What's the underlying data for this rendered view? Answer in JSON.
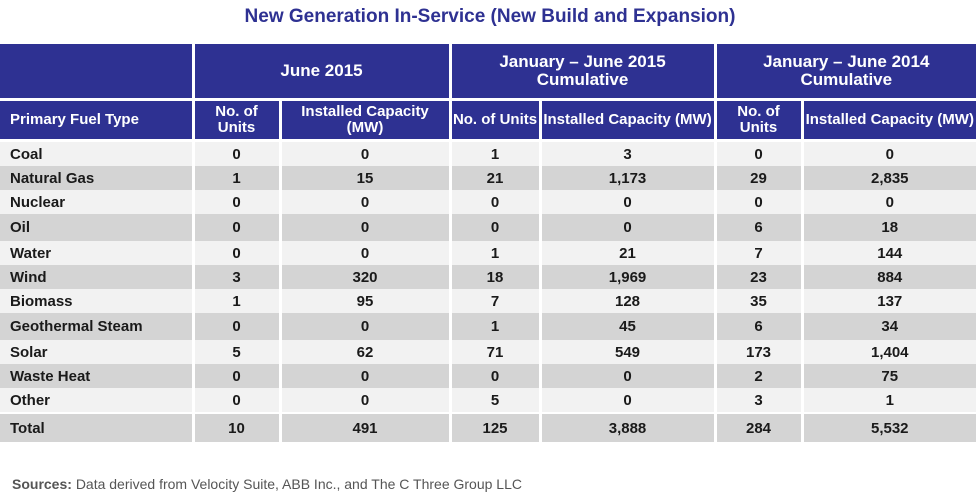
{
  "title": "New Generation In-Service (New Build and Expansion)",
  "header": {
    "groups": [
      "June 2015",
      "January –  June 2015 Cumulative",
      "January –  June 2014 Cumulative"
    ],
    "fuel_col": "Primary Fuel Type",
    "units_col": "No. of Units",
    "capacity_col": "Installed Capacity (MW)"
  },
  "rows": [
    {
      "fuel": "Coal",
      "v": [
        "0",
        "0",
        "1",
        "3",
        "0",
        "0"
      ]
    },
    {
      "fuel": "Natural Gas",
      "v": [
        "1",
        "15",
        "21",
        "1,173",
        "29",
        "2,835"
      ]
    },
    {
      "fuel": "Nuclear",
      "v": [
        "0",
        "0",
        "0",
        "0",
        "0",
        "0"
      ]
    },
    {
      "fuel": "Oil",
      "v": [
        "0",
        "0",
        "0",
        "0",
        "6",
        "18"
      ]
    },
    {
      "fuel": "Water",
      "v": [
        "0",
        "0",
        "1",
        "21",
        "7",
        "144"
      ]
    },
    {
      "fuel": "Wind",
      "v": [
        "3",
        "320",
        "18",
        "1,969",
        "23",
        "884"
      ]
    },
    {
      "fuel": "Biomass",
      "v": [
        "1",
        "95",
        "7",
        "128",
        "35",
        "137"
      ]
    },
    {
      "fuel": "Geothermal Steam",
      "v": [
        "0",
        "0",
        "1",
        "45",
        "6",
        "34"
      ]
    },
    {
      "fuel": "Solar",
      "v": [
        "5",
        "62",
        "71",
        "549",
        "173",
        "1,404"
      ]
    },
    {
      "fuel": "Waste Heat",
      "v": [
        "0",
        "0",
        "0",
        "0",
        "2",
        "75"
      ]
    },
    {
      "fuel": "Other",
      "v": [
        "0",
        "0",
        "5",
        "0",
        "3",
        "1"
      ]
    },
    {
      "fuel": "Total",
      "v": [
        "10",
        "491",
        "125",
        "3,888",
        "284",
        "5,532"
      ]
    }
  ],
  "source": {
    "label": "Sources:",
    "text": "Data derived from Velocity Suite, ABB Inc., and The C Three Group LLC"
  }
}
